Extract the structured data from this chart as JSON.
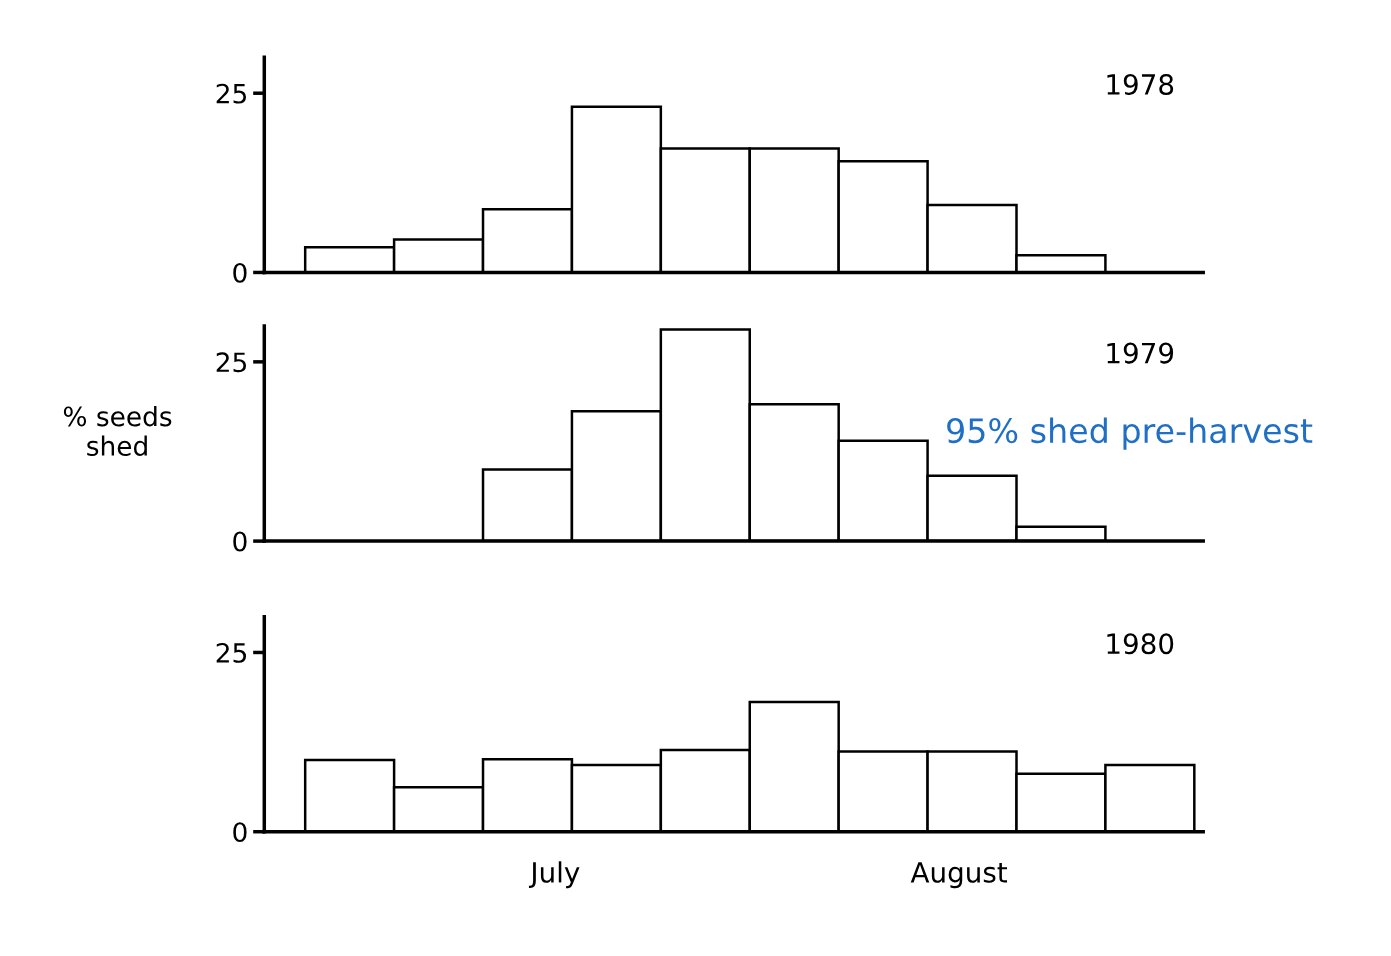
{
  "chart_data": [
    {
      "type": "bar",
      "title": "1978",
      "categories": [
        null,
        null,
        null,
        null,
        null,
        null,
        null,
        null,
        null,
        null
      ],
      "values": [
        3.5,
        4.6,
        8.8,
        23.1,
        17.3,
        17.3,
        15.5,
        9.4,
        2.4,
        null
      ],
      "ylim": [
        0,
        30
      ],
      "yticks": [
        0,
        25
      ],
      "tick_labels": "y",
      "grid": false,
      "legend": false
    },
    {
      "type": "bar",
      "title": "1979",
      "ylabel": "% seeds\nshed",
      "annotations": [
        "95% shed pre-harvest"
      ],
      "categories": [
        null,
        null,
        null,
        null,
        null,
        null,
        null,
        null,
        null,
        null
      ],
      "values": [
        null,
        null,
        10.0,
        18.1,
        29.5,
        19.1,
        14.0,
        9.1,
        2.0,
        null
      ],
      "ylim": [
        0,
        30
      ],
      "yticks": [
        0,
        25
      ],
      "tick_labels": "y",
      "grid": false,
      "legend": false
    },
    {
      "type": "bar",
      "title": "1980",
      "annotations": [
        "July",
        "August"
      ],
      "categories": [
        null,
        null,
        null,
        null,
        null,
        null,
        null,
        null,
        null,
        null
      ],
      "values": [
        10.0,
        6.2,
        10.1,
        9.3,
        11.4,
        18.1,
        11.2,
        11.2,
        8.1,
        9.3
      ],
      "ylim": [
        0,
        30
      ],
      "yticks": [
        0,
        25
      ],
      "grid": false,
      "legend": false
    }
  ]
}
